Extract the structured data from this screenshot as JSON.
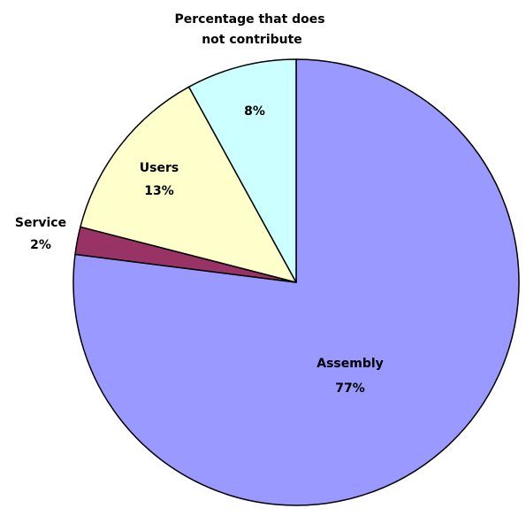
{
  "chart_data": {
    "type": "pie",
    "title": "",
    "slices": [
      {
        "name": "Assembly",
        "value": 77,
        "label": "77%",
        "color": "#9999ff"
      },
      {
        "name": "Service",
        "value": 2,
        "label": "2%",
        "color": "#993366"
      },
      {
        "name": "Users",
        "value": 13,
        "label": "13%",
        "color": "#ffffcc"
      },
      {
        "name": "Percentage that does not contribute",
        "value": 8,
        "label": "8%",
        "color": "#ccffff"
      }
    ],
    "legend": "none"
  }
}
